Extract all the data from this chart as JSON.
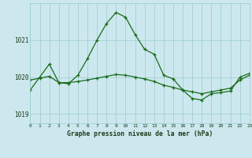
{
  "title": "Graphe pression niveau de la mer (hPa)",
  "background_color": "#cce8ee",
  "grid_color": "#99cccc",
  "line_color": "#1a6b1a",
  "xlim": [
    0,
    23
  ],
  "ylim": [
    1018.75,
    1022.0
  ],
  "yticks": [
    1019,
    1020,
    1021
  ],
  "xticks": [
    0,
    1,
    2,
    3,
    4,
    5,
    6,
    7,
    8,
    9,
    10,
    11,
    12,
    13,
    14,
    15,
    16,
    17,
    18,
    19,
    20,
    21,
    22,
    23
  ],
  "series1_x": [
    0,
    1,
    2,
    3,
    4,
    5,
    6,
    7,
    8,
    9,
    10,
    11,
    12,
    13,
    14,
    15,
    16,
    17,
    18,
    19,
    20,
    21,
    22,
    23
  ],
  "series1_y": [
    1019.65,
    1020.0,
    1020.35,
    1019.85,
    1019.82,
    1020.05,
    1020.5,
    1021.0,
    1021.45,
    1021.75,
    1021.62,
    1021.15,
    1020.75,
    1020.62,
    1020.05,
    1019.95,
    1019.65,
    1019.42,
    1019.38,
    1019.55,
    1019.58,
    1019.62,
    1020.0,
    1020.1
  ],
  "series2_x": [
    0,
    1,
    2,
    3,
    4,
    5,
    6,
    7,
    8,
    9,
    10,
    11,
    12,
    13,
    14,
    15,
    16,
    17,
    18,
    19,
    20,
    21,
    22,
    23
  ],
  "series2_y": [
    1019.92,
    1019.97,
    1020.02,
    1019.85,
    1019.85,
    1019.88,
    1019.92,
    1019.97,
    1020.02,
    1020.07,
    1020.05,
    1020.0,
    1019.95,
    1019.88,
    1019.78,
    1019.72,
    1019.65,
    1019.6,
    1019.55,
    1019.6,
    1019.65,
    1019.7,
    1019.92,
    1020.05
  ]
}
